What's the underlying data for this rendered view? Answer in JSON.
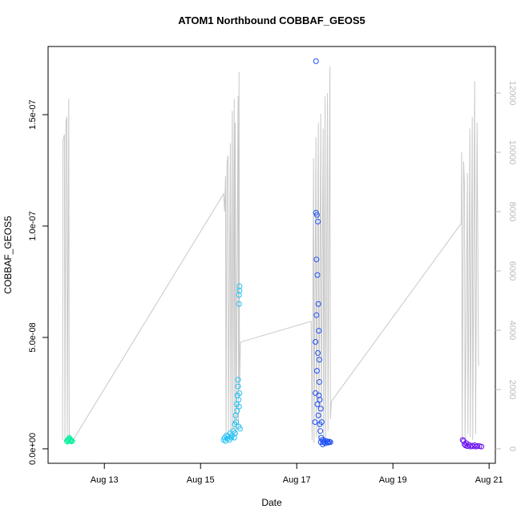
{
  "chart_data": {
    "type": "scatter",
    "title": "ATOM1 Northbound COBBAF_GEOS5",
    "x_label": "Date",
    "y_label": "COBBAF_GEOS5",
    "xlim": [
      11.83,
      21.13
    ],
    "xticks": [
      {
        "value": 13,
        "label": "Aug 13"
      },
      {
        "value": 15,
        "label": "Aug 15"
      },
      {
        "value": 17,
        "label": "Aug 17"
      },
      {
        "value": 19,
        "label": "Aug 19"
      },
      {
        "value": 21,
        "label": "Aug 21"
      }
    ],
    "ylim": [
      -6.5e-09,
      1.806e-07
    ],
    "yticks": [
      {
        "value": 0,
        "label": "0.0e+00"
      },
      {
        "value": 5e-08,
        "label": "5.0e-08"
      },
      {
        "value": 1e-07,
        "label": "1.0e-07"
      },
      {
        "value": 1.5e-07,
        "label": "1.5e-07"
      }
    ],
    "y2lim": [
      -486,
      13568
    ],
    "y2ticks": [
      0,
      2000,
      4000,
      6000,
      8000,
      10000,
      12000
    ],
    "series": [
      {
        "type": "line",
        "axis": "y2",
        "color": "#c8c8c8",
        "x": [
          12.13,
          12.14,
          12.17,
          12.18,
          12.2,
          12.22,
          12.23,
          12.26,
          12.27,
          12.3,
          12.35,
          15.48,
          15.5,
          15.52,
          15.53,
          15.55,
          15.57,
          15.58,
          15.62,
          15.63,
          15.66,
          15.67,
          15.7,
          15.71,
          15.72,
          15.74,
          15.78,
          15.79,
          15.8,
          15.81,
          15.83,
          17.3,
          17.32,
          17.35,
          17.36,
          17.4,
          17.41,
          17.45,
          17.46,
          17.5,
          17.51,
          17.55,
          17.56,
          17.59,
          17.6,
          17.64,
          17.65,
          17.69,
          17.7,
          17.72,
          20.42,
          20.43,
          20.44,
          20.47,
          20.49,
          20.5,
          20.55,
          20.56,
          20.6,
          20.61,
          20.65,
          20.66,
          20.7,
          20.72,
          20.75,
          20.78
        ],
        "values": [
          300,
          10400,
          10600,
          300,
          11000,
          11200,
          300,
          11800,
          400,
          300,
          300,
          8600,
          8000,
          9200,
          400,
          9600,
          9900,
          500,
          10300,
          400,
          11400,
          300,
          11800,
          600,
          11000,
          400,
          11900,
          700,
          12700,
          2000,
          3600,
          4300,
          300,
          9800,
          200,
          10500,
          400,
          11000,
          300,
          11300,
          800,
          10800,
          300,
          11900,
          400,
          12000,
          600,
          12900,
          1000,
          1600,
          7600,
          10000,
          300,
          9700,
          8800,
          300,
          9300,
          500,
          10800,
          400,
          11200,
          300,
          12400,
          500,
          11000,
          2800
        ]
      },
      {
        "type": "scatter",
        "color": "#10f0a0",
        "x": [
          12.22,
          12.23,
          12.24,
          12.25,
          12.26,
          12.27,
          12.28,
          12.29,
          12.3,
          12.31,
          12.32,
          12.33
        ],
        "values": [
          3.5e-09,
          3.2e-09,
          4e-09,
          3.8e-09,
          4.2e-09,
          5e-09,
          4.5e-09,
          4e-09,
          3.6e-09,
          3.9e-09,
          3.3e-09,
          3.5e-09
        ]
      },
      {
        "type": "scatter",
        "color": "#1ec0f5",
        "x": [
          15.48,
          15.5,
          15.52,
          15.54,
          15.56,
          15.58,
          15.6,
          15.62,
          15.64,
          15.66,
          15.68,
          15.7,
          15.71,
          15.72,
          15.73,
          15.74,
          15.75,
          15.76,
          15.77,
          15.78,
          15.78,
          15.79,
          15.79,
          15.8,
          15.8,
          15.8,
          15.81,
          15.81,
          15.81,
          15.82
        ],
        "values": [
          4e-09,
          5e-09,
          3.5e-09,
          6e-09,
          4.5e-09,
          5.5e-09,
          4e-09,
          7e-09,
          5e-09,
          6e-09,
          8e-09,
          5e-09,
          1.1e-08,
          7e-09,
          1.5e-08,
          1.2e-08,
          2e-08,
          1.7e-08,
          2.4e-08,
          3.1e-08,
          2.8e-08,
          1e-08,
          2.2e-08,
          6.5e-08,
          6.9e-08,
          1.9e-08,
          7.3e-08,
          7.1e-08,
          2.5e-08,
          9e-09
        ]
      },
      {
        "type": "scatter",
        "color": "#1e50f5",
        "x": [
          17.38,
          17.39,
          17.39,
          17.4,
          17.4,
          17.41,
          17.41,
          17.42,
          17.42,
          17.43,
          17.43,
          17.44,
          17.44,
          17.45,
          17.45,
          17.46,
          17.46,
          17.47,
          17.47,
          17.48,
          17.48,
          17.49,
          17.5,
          17.5,
          17.51,
          17.52,
          17.53,
          17.54,
          17.55,
          17.56,
          17.58,
          17.6,
          17.62,
          17.64,
          17.66,
          17.68,
          17.7
        ],
        "values": [
          1.2e-08,
          2.5e-08,
          4.8e-08,
          1.74e-07,
          1.06e-07,
          8.5e-08,
          6e-08,
          1.05e-07,
          3.5e-08,
          7.8e-08,
          2e-08,
          1.02e-07,
          4.3e-08,
          6.5e-08,
          1.5e-08,
          5.3e-08,
          2.4e-08,
          4e-08,
          3e-08,
          1.1e-08,
          2.2e-08,
          8e-09,
          1.8e-08,
          3e-09,
          5e-09,
          1.2e-08,
          4e-09,
          2e-09,
          3e-09,
          4e-09,
          3e-09,
          2.5e-09,
          3.5e-09,
          3e-09,
          2.8e-09,
          3.2e-09,
          3e-09
        ]
      },
      {
        "type": "scatter",
        "color": "#6a10f0",
        "x": [
          20.45,
          20.47,
          20.49,
          20.51,
          20.53,
          20.55,
          20.58,
          20.61,
          20.64,
          20.67,
          20.7,
          20.73,
          20.76,
          20.8,
          20.84
        ],
        "values": [
          4e-09,
          3.5e-09,
          2e-09,
          1.5e-09,
          2.5e-09,
          1.2e-09,
          1.8e-09,
          1e-09,
          1.4e-09,
          1.1e-09,
          1.6e-09,
          1e-09,
          1.3e-09,
          1.2e-09,
          1e-09
        ]
      }
    ]
  }
}
